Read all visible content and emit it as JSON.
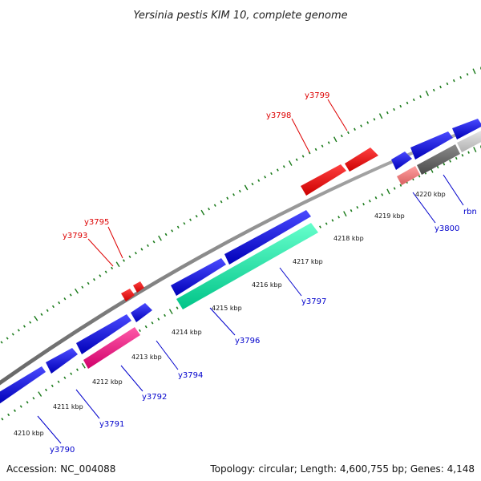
{
  "title": "Yersinia pestis KIM 10, complete genome",
  "footer": {
    "accession": "Accession: NC_004088",
    "summary": "Topology: circular; Length: 4,600,755 bp; Genes: 4,148"
  },
  "kbp_labels": [
    "4210 kbp",
    "4211 kbp",
    "4212 kbp",
    "4213 kbp",
    "4214 kbp",
    "4215 kbp",
    "4216 kbp",
    "4217 kbp",
    "4218 kbp",
    "4219 kbp",
    "4220 kbp"
  ],
  "gene_labels": {
    "y3790": "y3790",
    "y3791": "y3791",
    "y3792": "y3792",
    "y3793": "y3793",
    "y3794": "y3794",
    "y3795": "y3795",
    "y3796": "y3796",
    "y3797": "y3797",
    "y3798": "y3798",
    "y3799": "y3799",
    "y3800": "y3800",
    "rbn": "rbn"
  },
  "colors": {
    "forward": "#0000ee",
    "reverse_rna": "#ff0000",
    "magenta": "#ff1493",
    "teal": "#00e5a8",
    "salmon": "#f08080",
    "grey_dark": "#666666",
    "grey_light": "#cccccc",
    "backbone": "#808080",
    "ticks": "#1a7a1a",
    "label_blue": "#0000cc",
    "label_red": "#dd0000"
  }
}
